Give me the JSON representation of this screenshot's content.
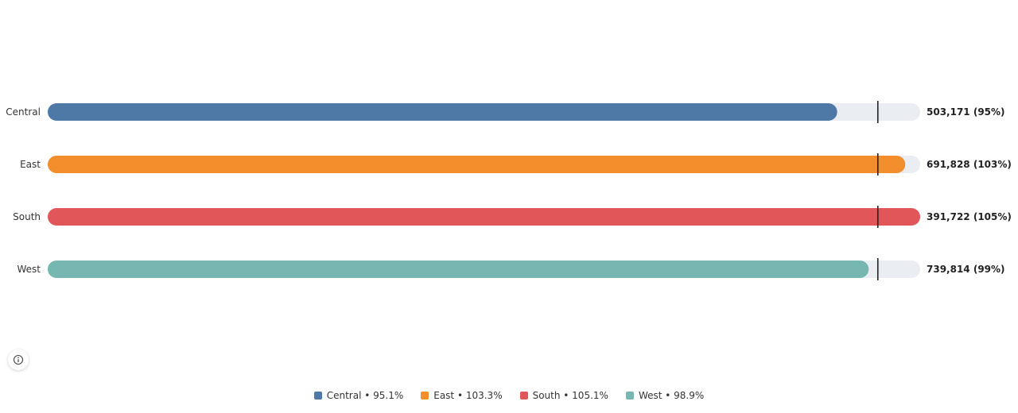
{
  "chart_data": {
    "type": "bar",
    "orientation": "horizontal",
    "categories": [
      "Central",
      "East",
      "South",
      "West"
    ],
    "values": [
      503171,
      691828,
      391722,
      739814
    ],
    "percent_of_target": [
      95.1,
      103.3,
      105.1,
      98.9
    ],
    "value_labels": [
      "503,171 (95%)",
      "691,828 (103%)",
      "391,722 (105%)",
      "739,814 (99%)"
    ],
    "colors": [
      "#4e79a7",
      "#f28e2b",
      "#e15759",
      "#76b7b2"
    ],
    "target_percent": 100,
    "scale_max_percent": 105.1,
    "legend": {
      "position": "bottom",
      "entries": [
        "Central • 95.1%",
        "East • 103.3%",
        "South • 105.1%",
        "West • 98.9%"
      ]
    },
    "title": "",
    "xlabel": "",
    "ylabel": "",
    "grid": false
  },
  "colors": {
    "track": "#eaedf2",
    "target_marker": "#222222"
  },
  "info_icon": "info-icon"
}
